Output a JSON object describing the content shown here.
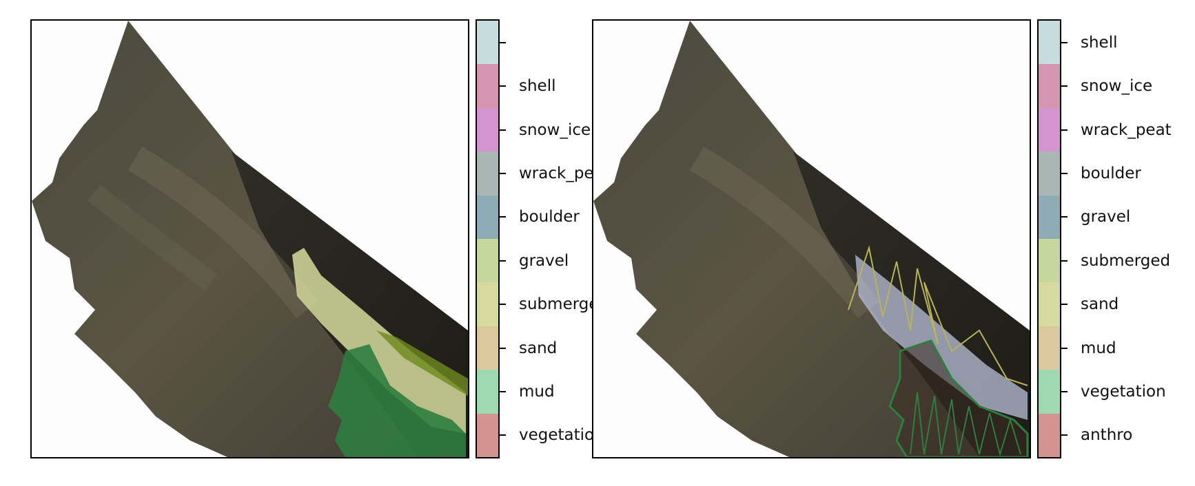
{
  "left_panel": {
    "colorbar": {
      "labels": [
        "",
        "shell",
        "snow_ice",
        "wrack_peat",
        "boulder",
        "gravel",
        "submerged",
        "sand",
        "mud",
        "vegetation"
      ],
      "colors": [
        "#c6dcdd",
        "#d595b0",
        "#d494cf",
        "#a9b6b4",
        "#8eacb6",
        "#c6d79d",
        "#d6da9e",
        "#dcc89d",
        "#9ed9b1",
        "#d5938f"
      ]
    }
  },
  "right_panel": {
    "colorbar": {
      "labels": [
        "shell",
        "snow_ice",
        "wrack_peat",
        "boulder",
        "gravel",
        "submerged",
        "sand",
        "mud",
        "vegetation",
        "anthro"
      ],
      "colors": [
        "#c6dcdd",
        "#d595b0",
        "#d494cf",
        "#a9b6b4",
        "#8eacb6",
        "#c6d79d",
        "#d6da9e",
        "#dcc89d",
        "#9ed9b1",
        "#d5938f"
      ]
    }
  }
}
